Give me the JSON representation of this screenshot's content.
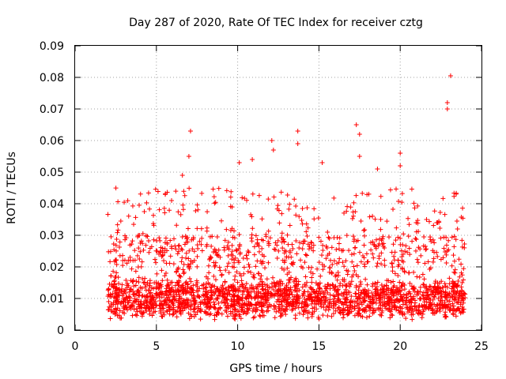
{
  "chart_data": {
    "type": "scatter",
    "title": "Day 287 of 2020, Rate Of TEC Index for receiver cztg",
    "xlabel": "GPS time / hours",
    "ylabel": "ROTI / TECUs",
    "xlim": [
      0,
      25
    ],
    "ylim": [
      0,
      0.09
    ],
    "x_ticks": [
      "0",
      "5",
      "10",
      "15",
      "20",
      "25"
    ],
    "y_ticks": [
      "0",
      "0.01",
      "0.02",
      "0.03",
      "0.04",
      "0.05",
      "0.06",
      "0.07",
      "0.08",
      "0.09"
    ],
    "grid": true,
    "marker": "+",
    "color": "#ff0000",
    "time_range_hours": [
      2.0,
      24.0
    ],
    "typical_roti_range": [
      0.003,
      0.03
    ],
    "notable_points": [
      {
        "x": 7.1,
        "y": 0.063
      },
      {
        "x": 7.0,
        "y": 0.055
      },
      {
        "x": 6.6,
        "y": 0.049
      },
      {
        "x": 10.1,
        "y": 0.053
      },
      {
        "x": 10.9,
        "y": 0.054
      },
      {
        "x": 12.1,
        "y": 0.06
      },
      {
        "x": 12.2,
        "y": 0.057
      },
      {
        "x": 13.7,
        "y": 0.063
      },
      {
        "x": 13.7,
        "y": 0.059
      },
      {
        "x": 15.2,
        "y": 0.053
      },
      {
        "x": 17.3,
        "y": 0.065
      },
      {
        "x": 17.5,
        "y": 0.062
      },
      {
        "x": 17.5,
        "y": 0.055
      },
      {
        "x": 18.6,
        "y": 0.051
      },
      {
        "x": 20.0,
        "y": 0.056
      },
      {
        "x": 20.0,
        "y": 0.052
      },
      {
        "x": 23.1,
        "y": 0.0805
      },
      {
        "x": 22.9,
        "y": 0.072
      },
      {
        "x": 22.9,
        "y": 0.07
      }
    ]
  }
}
